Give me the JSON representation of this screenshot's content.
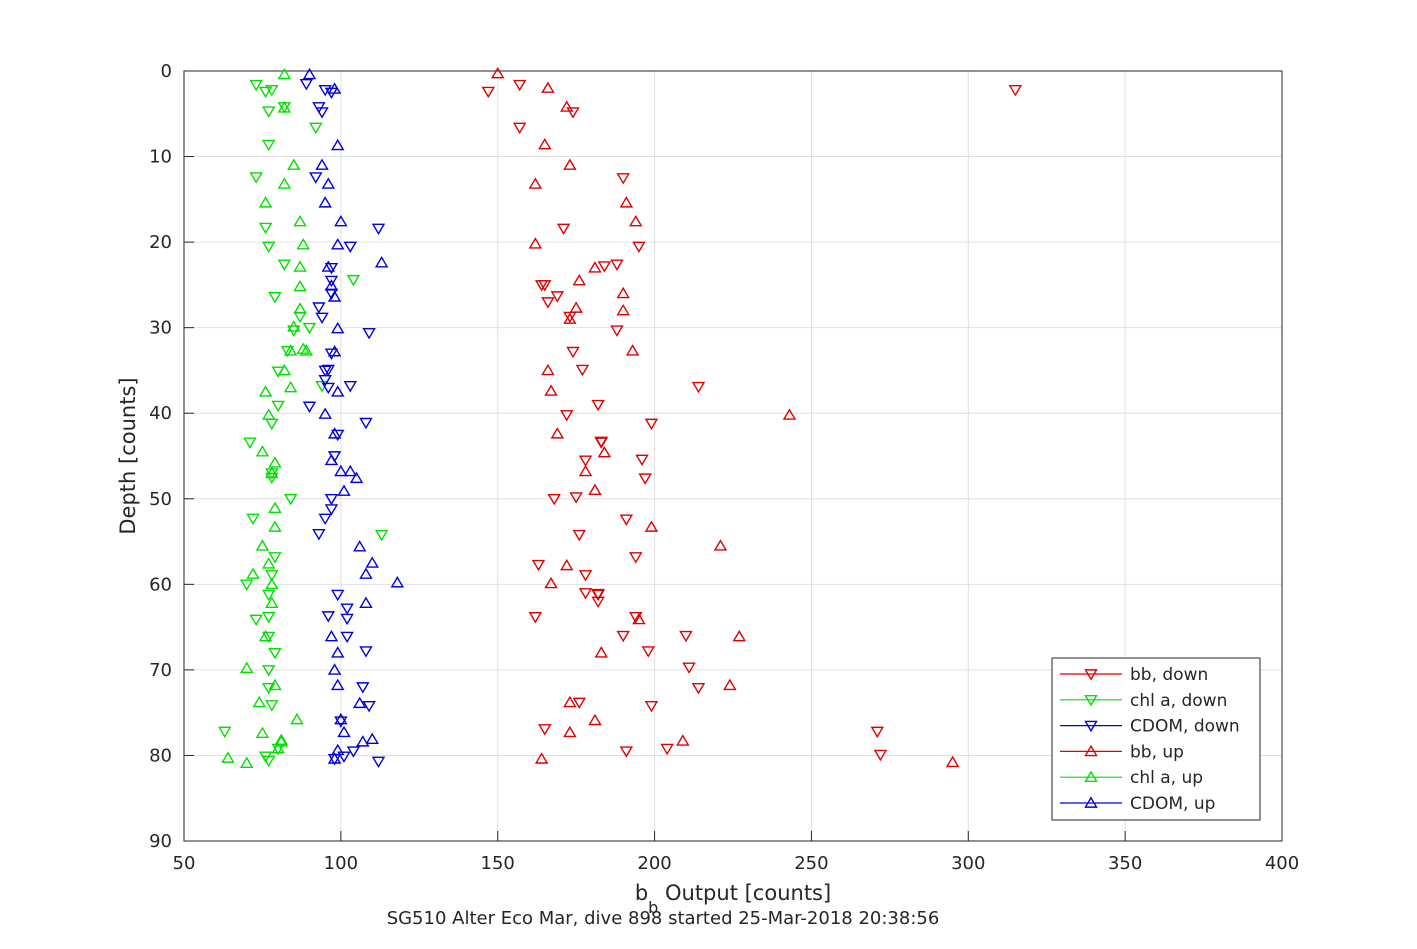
{
  "chart_data": {
    "type": "scatter",
    "title": "",
    "xlabel_main": "b",
    "xlabel_sub": "b",
    "xlabel_rest": " Output [counts]",
    "ylabel": "Depth [counts]",
    "caption": "SG510 Alter Eco Mar, dive 898 started 25-Mar-2018 20:38:56",
    "xlim": [
      50,
      400
    ],
    "ylim": [
      0,
      90
    ],
    "y_reversed": true,
    "grid": true,
    "legend_position": "bottom-right",
    "x_ticks": [
      "50",
      "100",
      "150",
      "200",
      "250",
      "300",
      "350",
      "400"
    ],
    "y_ticks": [
      "0",
      "10",
      "20",
      "30",
      "40",
      "50",
      "60",
      "70",
      "80",
      "90"
    ],
    "series": [
      {
        "name": "bb, down",
        "color": "#e00000",
        "marker": "triangle-down",
        "x": [
          147,
          157,
          315,
          174,
          157,
          190,
          171,
          188,
          165,
          188,
          177,
          183,
          214,
          175,
          199,
          182,
          194,
          197,
          183,
          191,
          176,
          178,
          182,
          194,
          210,
          211,
          214,
          199,
          271,
          204,
          191,
          272,
          169,
          173,
          198,
          190,
          176,
          162,
          164,
          168,
          178,
          174,
          182,
          163,
          165,
          196,
          195,
          172,
          184,
          178,
          182,
          166
        ],
        "y": [
          2.4,
          1.6,
          2.2,
          4.8,
          6.6,
          12.5,
          18.4,
          22.6,
          25.0,
          30.3,
          34.9,
          43.3,
          36.9,
          49.8,
          41.2,
          61.2,
          56.8,
          47.6,
          43.4,
          52.4,
          54.2,
          58.9,
          61.1,
          63.8,
          66.0,
          69.7,
          72.1,
          74.2,
          77.2,
          79.2,
          79.5,
          79.9,
          26.3,
          28.7,
          67.8,
          66.0,
          73.8,
          63.8,
          25.0,
          50.0,
          45.5,
          32.8,
          39.0,
          57.7,
          76.9,
          45.4,
          20.5,
          40.2,
          22.8,
          61.0,
          62.0,
          27.0
        ]
      },
      {
        "name": "chl a, down",
        "color": "#00e000",
        "marker": "triangle-down",
        "x": [
          73,
          76,
          78,
          77,
          92,
          77,
          73,
          76,
          77,
          79,
          82,
          85,
          87,
          90,
          83,
          80,
          78,
          71,
          78,
          72,
          79,
          78,
          77,
          77,
          73,
          79,
          77,
          78,
          77,
          63,
          80,
          77,
          94,
          80,
          104,
          78,
          84,
          113,
          82,
          77,
          76,
          70
        ],
        "y": [
          1.6,
          2.4,
          2.2,
          4.7,
          6.6,
          8.6,
          12.4,
          18.3,
          20.5,
          26.4,
          22.6,
          30.3,
          28.7,
          30.0,
          32.7,
          39.1,
          41.2,
          43.4,
          47.5,
          52.3,
          56.8,
          58.9,
          61.2,
          63.8,
          64.1,
          68.0,
          72.1,
          74.1,
          66.1,
          77.2,
          79.2,
          80.6,
          36.8,
          35.1,
          24.4,
          47.0,
          50.0,
          54.2,
          4.2,
          70.0,
          80.1,
          60.0
        ]
      },
      {
        "name": "CDOM, down",
        "color": "#0000e0",
        "marker": "triangle-down",
        "x": [
          89,
          95,
          97,
          93,
          94,
          92,
          112,
          103,
          97,
          93,
          94,
          109,
          96,
          90,
          108,
          98,
          97,
          95,
          93,
          96,
          108,
          102,
          107,
          109,
          112,
          101,
          96,
          99,
          97,
          103,
          97,
          102,
          95,
          102,
          104,
          98,
          100,
          97,
          97,
          95,
          99
        ],
        "y": [
          1.5,
          2.2,
          2.5,
          4.2,
          4.8,
          12.4,
          18.4,
          20.5,
          24.5,
          27.6,
          28.8,
          30.6,
          34.9,
          39.2,
          41.1,
          45.0,
          50.0,
          52.3,
          54.1,
          63.7,
          67.8,
          66.1,
          72.0,
          74.2,
          80.7,
          80.1,
          37.0,
          42.5,
          51.2,
          36.8,
          33.0,
          62.8,
          35.0,
          64.0,
          79.5,
          80.4,
          76.0,
          26.0,
          23.0,
          36.1,
          61.2
        ]
      },
      {
        "name": "bb, up",
        "color": "#e00000",
        "marker": "triangle-up",
        "x": [
          150,
          166,
          172,
          165,
          173,
          162,
          191,
          194,
          162,
          181,
          175,
          193,
          166,
          167,
          243,
          169,
          184,
          181,
          199,
          221,
          172,
          167,
          195,
          227,
          183,
          224,
          173,
          181,
          173,
          209,
          164,
          295,
          178,
          173,
          190,
          176,
          190
        ],
        "y": [
          0.3,
          2.0,
          4.2,
          8.6,
          11.0,
          13.2,
          15.4,
          17.6,
          20.2,
          23.0,
          27.7,
          32.7,
          35.0,
          37.4,
          40.2,
          42.4,
          44.6,
          49.0,
          53.3,
          55.5,
          57.8,
          59.9,
          64.1,
          66.1,
          68.0,
          71.8,
          73.8,
          75.9,
          77.3,
          78.3,
          80.4,
          80.8,
          46.8,
          29.0,
          26.0,
          24.5,
          28.0
        ]
      },
      {
        "name": "chl a, up",
        "color": "#00e000",
        "marker": "triangle-up",
        "x": [
          82,
          82,
          85,
          82,
          76,
          87,
          88,
          87,
          87,
          87,
          85,
          84,
          88,
          82,
          76,
          77,
          75,
          79,
          78,
          79,
          79,
          77,
          78,
          75,
          76,
          79,
          70,
          74,
          75,
          86,
          81,
          81,
          80,
          64,
          70,
          78,
          84,
          89,
          72
        ],
        "y": [
          0.4,
          4.3,
          11.0,
          13.2,
          15.4,
          17.6,
          20.3,
          22.9,
          25.2,
          27.8,
          29.9,
          32.7,
          32.5,
          35.0,
          37.5,
          40.2,
          44.5,
          45.8,
          47.0,
          51.1,
          53.3,
          57.6,
          60.0,
          55.5,
          66.1,
          71.8,
          69.8,
          73.8,
          77.4,
          75.8,
          78.4,
          78.2,
          79.2,
          80.3,
          80.9,
          62.2,
          37.0,
          32.7,
          58.8
        ]
      },
      {
        "name": "CDOM, up",
        "color": "#0000e0",
        "marker": "triangle-up",
        "x": [
          90,
          98,
          99,
          94,
          96,
          95,
          100,
          99,
          96,
          98,
          97,
          98,
          99,
          99,
          95,
          97,
          105,
          103,
          100,
          101,
          106,
          110,
          108,
          118,
          108,
          97,
          99,
          98,
          99,
          106,
          100,
          101,
          99,
          107,
          98,
          110,
          98,
          113
        ],
        "y": [
          0.4,
          2.1,
          8.7,
          11.0,
          13.2,
          15.4,
          17.6,
          20.3,
          22.9,
          26.4,
          25.1,
          32.8,
          37.5,
          30.1,
          40.1,
          45.5,
          47.6,
          46.8,
          46.8,
          49.1,
          55.6,
          57.5,
          58.8,
          59.8,
          62.2,
          66.1,
          68.0,
          70.0,
          71.8,
          73.9,
          75.8,
          77.3,
          79.4,
          78.4,
          80.4,
          78.1,
          42.4,
          22.4
        ]
      }
    ]
  }
}
